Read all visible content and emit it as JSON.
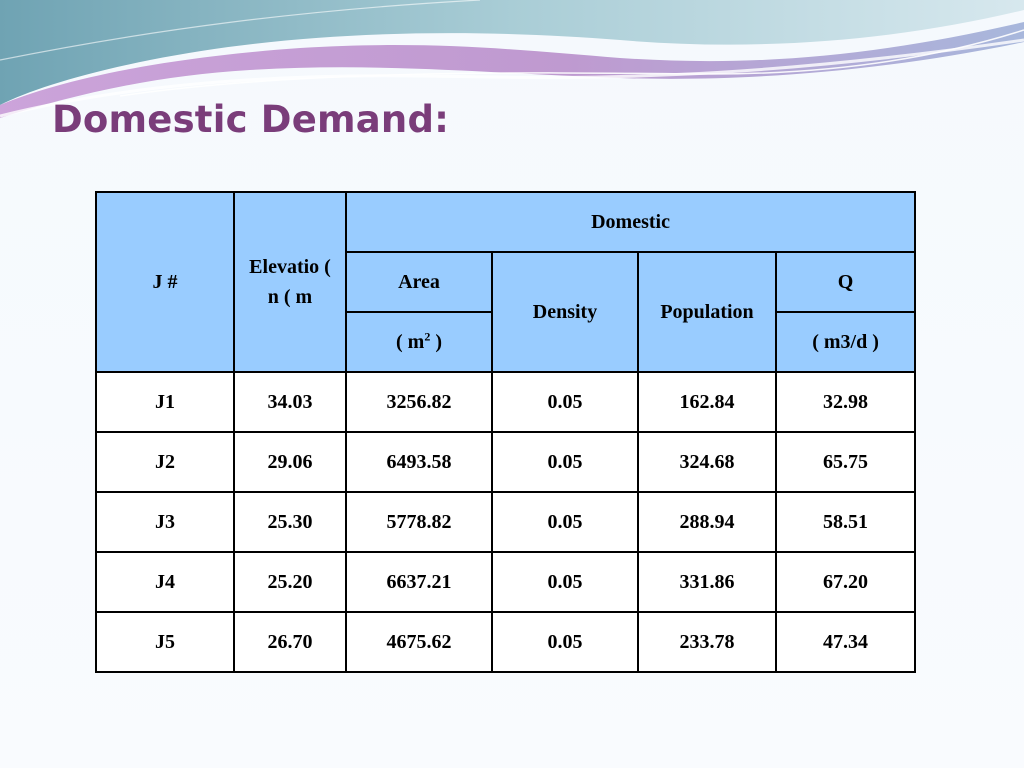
{
  "slide": {
    "title": "Domestic Demand:",
    "colors": {
      "title": "#7a3d7a",
      "header_fill": "#99ccff",
      "cell_fill": "#ffffff",
      "border": "#000000",
      "swoosh_purple": "#b78fc8",
      "swoosh_teal": "#8fb7c4"
    }
  },
  "table": {
    "headers": {
      "j": "J #",
      "elevation": "Elevatio ( n ( m",
      "domestic": "Domestic",
      "area": "Area",
      "area_unit_prefix": "( m",
      "area_unit_sup": "2",
      "area_unit_suffix": " )",
      "density": "Density",
      "population": "Population",
      "q": "Q",
      "q_unit": "( m3/d )"
    },
    "rows": [
      {
        "j": "J1",
        "elevation": "34.03",
        "area": "3256.82",
        "density": "0.05",
        "population": "162.84",
        "q": "32.98"
      },
      {
        "j": "J2",
        "elevation": "29.06",
        "area": "6493.58",
        "density": "0.05",
        "population": "324.68",
        "q": "65.75"
      },
      {
        "j": "J3",
        "elevation": "25.30",
        "area": "5778.82",
        "density": "0.05",
        "population": "288.94",
        "q": "58.51"
      },
      {
        "j": "J4",
        "elevation": "25.20",
        "area": "6637.21",
        "density": "0.05",
        "population": "331.86",
        "q": "67.20"
      },
      {
        "j": "J5",
        "elevation": "26.70",
        "area": "4675.62",
        "density": "0.05",
        "population": "233.78",
        "q": "47.34"
      }
    ]
  }
}
